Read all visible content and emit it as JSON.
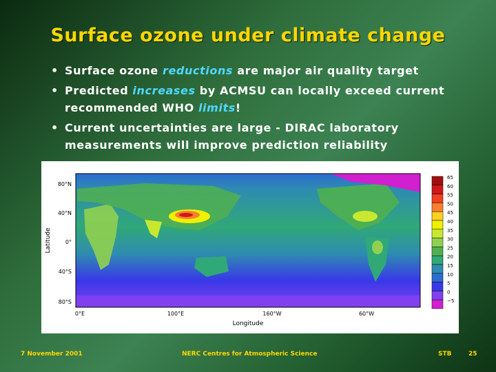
{
  "slide": {
    "title": "Surface ozone under climate change",
    "bullets": [
      {
        "parts": [
          {
            "text": "Surface ozone ",
            "hl": false
          },
          {
            "text": "reductions",
            "hl": true
          },
          {
            "text": " are major air quality target",
            "hl": false
          }
        ]
      },
      {
        "parts": [
          {
            "text": "Predicted ",
            "hl": false
          },
          {
            "text": "increases",
            "hl": true
          },
          {
            "text": " by ACMSU can locally exceed current recommended WHO ",
            "hl": false
          },
          {
            "text": "limits",
            "hl": true
          },
          {
            "text": "!",
            "hl": false
          }
        ]
      },
      {
        "parts": [
          {
            "text": "Current uncertainties are large - DIRAC laboratory measurements will improve prediction reliability",
            "hl": false
          }
        ]
      }
    ]
  },
  "map": {
    "xlabel": "Longitude",
    "ylabel": "Latitude",
    "x_ticks": [
      "0°E",
      "100°E",
      "160°W",
      "60°W"
    ],
    "y_ticks": [
      "80°N",
      "40°N",
      "0°",
      "40°S",
      "80°S"
    ],
    "colorbar_labels": [
      "65",
      "60",
      "55",
      "50",
      "45",
      "40",
      "35",
      "30",
      "25",
      "20",
      "15",
      "10",
      "5",
      "0",
      "−5"
    ],
    "colorbar_colors": [
      "#a01010",
      "#d01818",
      "#f04020",
      "#f88030",
      "#ffd020",
      "#f0f000",
      "#c8e830",
      "#90d050",
      "#50b050",
      "#30a878",
      "#2e8cb0",
      "#2c6cd0",
      "#3838e8",
      "#8040f0",
      "#d020d0"
    ]
  },
  "footer": {
    "date": "7 November 2001",
    "org": "NERC Centres for Atmospheric Science",
    "author": "STB",
    "page": "25"
  }
}
